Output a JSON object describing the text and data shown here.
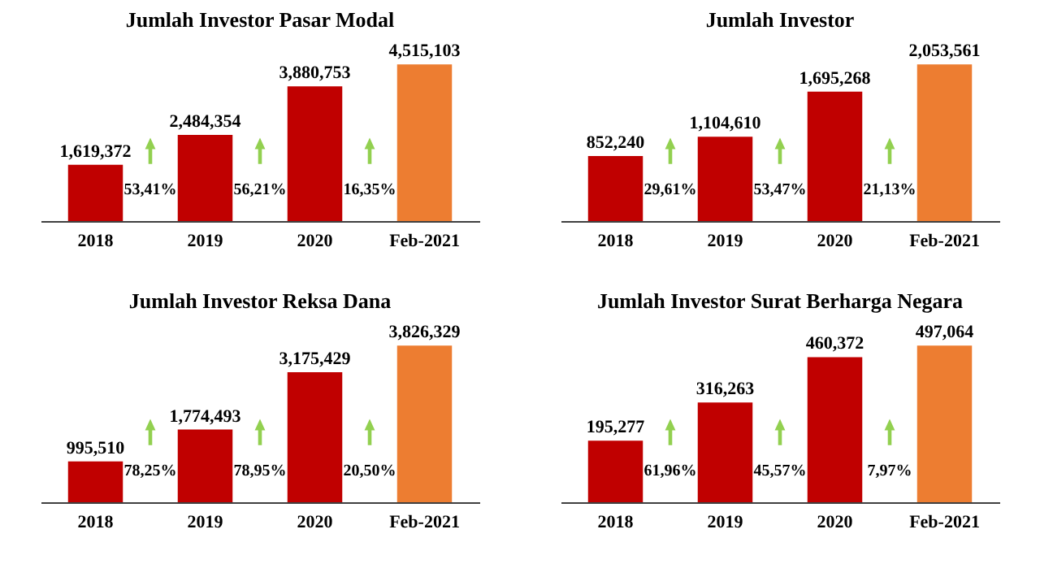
{
  "chart_data": [
    {
      "type": "bar",
      "title": "Jumlah Investor Pasar Modal",
      "categories": [
        "2018",
        "2019",
        "2020",
        "Feb-2021"
      ],
      "values": [
        1619372,
        2484354,
        3880753,
        4515103
      ],
      "value_labels": [
        "1,619,372",
        "2,484,354",
        "3,880,753",
        "4,515,103"
      ],
      "colors": [
        "#c00000",
        "#c00000",
        "#c00000",
        "#ed7d31"
      ],
      "annotations": [
        "53,41%",
        "56,21%",
        "16,35%"
      ]
    },
    {
      "type": "bar",
      "title": "Jumlah Investor",
      "categories": [
        "2018",
        "2019",
        "2020",
        "Feb-2021"
      ],
      "values": [
        852240,
        1104610,
        1695268,
        2053561
      ],
      "value_labels": [
        "852,240",
        "1,104,610",
        "1,695,268",
        "2,053,561"
      ],
      "colors": [
        "#c00000",
        "#c00000",
        "#c00000",
        "#ed7d31"
      ],
      "annotations": [
        "29,61%",
        "53,47%",
        "21,13%"
      ]
    },
    {
      "type": "bar",
      "title": "Jumlah Investor Reksa Dana",
      "categories": [
        "2018",
        "2019",
        "2020",
        "Feb-2021"
      ],
      "values": [
        995510,
        1774493,
        3175429,
        3826329
      ],
      "value_labels": [
        "995,510",
        "1,774,493",
        "3,175,429",
        "3,826,329"
      ],
      "colors": [
        "#c00000",
        "#c00000",
        "#c00000",
        "#ed7d31"
      ],
      "annotations": [
        "78,25%",
        "78,95%",
        "20,50%"
      ]
    },
    {
      "type": "bar",
      "title": "Jumlah Investor Surat Berharga Negara",
      "categories": [
        "2018",
        "2019",
        "2020",
        "Feb-2021"
      ],
      "values": [
        195277,
        316263,
        460372,
        497064
      ],
      "value_labels": [
        "195,277",
        "316,263",
        "460,372",
        "497,064"
      ],
      "colors": [
        "#c00000",
        "#c00000",
        "#c00000",
        "#ed7d31"
      ],
      "annotations": [
        "61,96%",
        "45,57%",
        "7,97%"
      ]
    }
  ]
}
